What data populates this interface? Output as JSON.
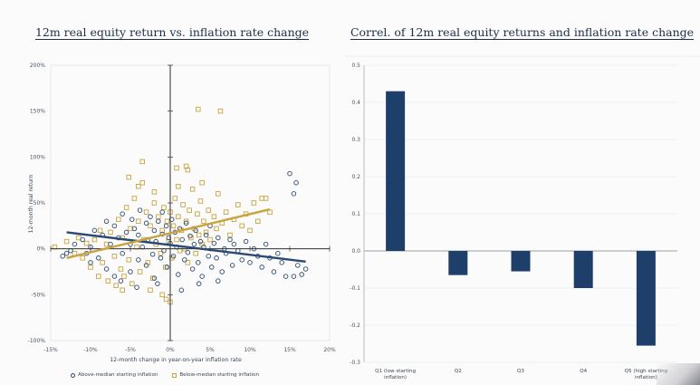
{
  "colors": {
    "above_median": "#2b4a73",
    "below_median": "#c8a33e",
    "bar": "#1f3f6b",
    "axis": "#2e2e2e",
    "grid": "#e1e4ea",
    "title": "#1e2e4a"
  },
  "chart_data": [
    {
      "type": "scatter",
      "title": "12m real equity return vs. inflation rate change",
      "xlabel": "12-month change in year-on-year inflation rate",
      "ylabel": "12-month real return",
      "xlim": [
        -0.15,
        0.2
      ],
      "ylim": [
        -1.0,
        2.0
      ],
      "x_ticks": [
        "-15%",
        "-10%",
        "-5%",
        "0%",
        "5%",
        "10%",
        "15%",
        "20%"
      ],
      "x_tick_values": [
        -0.15,
        -0.1,
        -0.05,
        0,
        0.05,
        0.1,
        0.15,
        0.2
      ],
      "y_ticks": [
        "200%",
        "150%",
        "100%",
        "50%",
        "0%",
        "-50%",
        "-100%"
      ],
      "y_tick_values": [
        2.0,
        1.5,
        1.0,
        0.5,
        0,
        -0.5,
        -1.0
      ],
      "legend_placement": "bottom",
      "grid": false,
      "series": [
        {
          "name": "Above-median starting inflation",
          "marker": "circle",
          "points": [
            [
              -0.13,
              -0.05
            ],
            [
              -0.125,
              -0.02
            ],
            [
              -0.12,
              0.05
            ],
            [
              -0.11,
              0.1
            ],
            [
              -0.1,
              -0.15
            ],
            [
              -0.1,
              0.02
            ],
            [
              -0.095,
              0.2
            ],
            [
              -0.09,
              -0.1
            ],
            [
              -0.085,
              0.15
            ],
            [
              -0.08,
              0.3
            ],
            [
              -0.08,
              -0.22
            ],
            [
              -0.075,
              0.05
            ],
            [
              -0.07,
              0.25
            ],
            [
              -0.07,
              -0.3
            ],
            [
              -0.065,
              0.12
            ],
            [
              -0.06,
              0.38
            ],
            [
              -0.06,
              -0.05
            ],
            [
              -0.055,
              0.18
            ],
            [
              -0.05,
              -0.25
            ],
            [
              -0.05,
              0.05
            ],
            [
              -0.048,
              0.32
            ],
            [
              -0.045,
              0.22
            ],
            [
              -0.04,
              -0.12
            ],
            [
              -0.04,
              0.15
            ],
            [
              -0.038,
              0.42
            ],
            [
              -0.035,
              0.02
            ],
            [
              -0.03,
              0.28
            ],
            [
              -0.03,
              -0.18
            ],
            [
              -0.028,
              0.1
            ],
            [
              -0.025,
              0.35
            ],
            [
              -0.022,
              -0.06
            ],
            [
              -0.02,
              0.2
            ],
            [
              -0.02,
              -0.32
            ],
            [
              -0.018,
              0.08
            ],
            [
              -0.015,
              0.3
            ],
            [
              -0.012,
              -0.1
            ],
            [
              -0.01,
              0.16
            ],
            [
              -0.01,
              0.4
            ],
            [
              -0.008,
              -0.02
            ],
            [
              -0.005,
              0.25
            ],
            [
              -0.004,
              -0.2
            ],
            [
              -0.002,
              0.12
            ],
            [
              0.0,
              0.06
            ],
            [
              0.002,
              0.32
            ],
            [
              0.004,
              -0.08
            ],
            [
              0.006,
              0.18
            ],
            [
              0.008,
              0.02
            ],
            [
              0.01,
              -0.28
            ],
            [
              0.012,
              0.22
            ],
            [
              0.015,
              0.1
            ],
            [
              0.018,
              -0.12
            ],
            [
              0.02,
              0.28
            ],
            [
              0.022,
              -0.04
            ],
            [
              0.025,
              0.14
            ],
            [
              0.028,
              -0.22
            ],
            [
              0.03,
              0.05
            ],
            [
              0.032,
              0.2
            ],
            [
              0.035,
              -0.15
            ],
            [
              0.038,
              0.08
            ],
            [
              0.04,
              -0.3
            ],
            [
              0.042,
              0.02
            ],
            [
              0.045,
              0.15
            ],
            [
              0.048,
              -0.08
            ],
            [
              0.05,
              0.25
            ],
            [
              0.052,
              -0.2
            ],
            [
              0.055,
              0.06
            ],
            [
              0.058,
              -0.1
            ],
            [
              0.06,
              0.12
            ],
            [
              0.065,
              -0.25
            ],
            [
              0.068,
              0.0
            ],
            [
              0.07,
              -0.05
            ],
            [
              0.075,
              0.1
            ],
            [
              0.078,
              -0.18
            ],
            [
              0.08,
              0.05
            ],
            [
              0.085,
              -0.02
            ],
            [
              0.09,
              -0.12
            ],
            [
              0.095,
              0.08
            ],
            [
              0.1,
              -0.15
            ],
            [
              0.105,
              0.0
            ],
            [
              0.11,
              -0.08
            ],
            [
              0.115,
              -0.2
            ],
            [
              0.12,
              0.05
            ],
            [
              0.125,
              -0.1
            ],
            [
              0.13,
              -0.25
            ],
            [
              0.135,
              -0.05
            ],
            [
              0.14,
              -0.15
            ],
            [
              0.145,
              -0.3
            ],
            [
              0.15,
              0.82
            ],
            [
              0.155,
              0.6
            ],
            [
              0.158,
              0.72
            ],
            [
              0.155,
              -0.3
            ],
            [
              0.16,
              -0.18
            ],
            [
              0.165,
              -0.28
            ],
            [
              0.17,
              -0.22
            ],
            [
              -0.135,
              -0.08
            ],
            [
              -0.105,
              -0.05
            ],
            [
              -0.062,
              -0.35
            ],
            [
              -0.042,
              -0.42
            ],
            [
              -0.016,
              -0.38
            ],
            [
              0.014,
              -0.45
            ],
            [
              0.036,
              -0.38
            ],
            [
              0.06,
              -0.35
            ]
          ]
        },
        {
          "name": "Below-median starting inflation",
          "marker": "square",
          "points": [
            [
              0.035,
              1.52
            ],
            [
              0.063,
              1.5
            ],
            [
              -0.145,
              0.02
            ],
            [
              -0.13,
              0.08
            ],
            [
              -0.12,
              -0.05
            ],
            [
              -0.115,
              0.12
            ],
            [
              -0.11,
              -0.1
            ],
            [
              -0.105,
              0.06
            ],
            [
              -0.1,
              -0.2
            ],
            [
              -0.095,
              0.1
            ],
            [
              -0.09,
              -0.3
            ],
            [
              -0.088,
              0.2
            ],
            [
              -0.085,
              -0.15
            ],
            [
              -0.08,
              0.05
            ],
            [
              -0.078,
              -0.35
            ],
            [
              -0.075,
              0.18
            ],
            [
              -0.07,
              -0.08
            ],
            [
              -0.068,
              -0.4
            ],
            [
              -0.065,
              0.32
            ],
            [
              -0.062,
              -0.22
            ],
            [
              -0.06,
              0.12
            ],
            [
              -0.058,
              -0.3
            ],
            [
              -0.055,
              0.45
            ],
            [
              -0.052,
              -0.12
            ],
            [
              -0.05,
              0.22
            ],
            [
              -0.048,
              -0.38
            ],
            [
              -0.045,
              0.55
            ],
            [
              -0.042,
              0.02
            ],
            [
              -0.04,
              0.3
            ],
            [
              -0.038,
              -0.25
            ],
            [
              -0.035,
              0.72
            ],
            [
              -0.033,
              0.1
            ],
            [
              -0.03,
              0.4
            ],
            [
              -0.028,
              -0.15
            ],
            [
              -0.025,
              0.25
            ],
            [
              -0.022,
              -0.32
            ],
            [
              -0.02,
              0.5
            ],
            [
              -0.018,
              0.05
            ],
            [
              -0.015,
              0.35
            ],
            [
              -0.012,
              -0.05
            ],
            [
              -0.01,
              0.2
            ],
            [
              -0.008,
              0.45
            ],
            [
              -0.006,
              -0.2
            ],
            [
              -0.004,
              0.3
            ],
            [
              -0.002,
              0.08
            ],
            [
              0.0,
              0.4
            ],
            [
              0.002,
              -0.1
            ],
            [
              0.004,
              0.25
            ],
            [
              0.006,
              0.55
            ],
            [
              0.008,
              0.1
            ],
            [
              0.01,
              0.35
            ],
            [
              0.012,
              -0.02
            ],
            [
              0.014,
              0.2
            ],
            [
              0.016,
              0.48
            ],
            [
              0.018,
              0.0
            ],
            [
              0.02,
              0.3
            ],
            [
              0.022,
              -0.15
            ],
            [
              0.024,
              0.42
            ],
            [
              0.026,
              0.12
            ],
            [
              0.028,
              0.65
            ],
            [
              0.03,
              0.22
            ],
            [
              0.032,
              -0.05
            ],
            [
              0.034,
              0.38
            ],
            [
              0.036,
              0.15
            ],
            [
              0.038,
              0.52
            ],
            [
              0.04,
              0.05
            ],
            [
              0.042,
              0.3
            ],
            [
              0.045,
              0.18
            ],
            [
              0.048,
              0.42
            ],
            [
              0.05,
              0.1
            ],
            [
              0.055,
              0.35
            ],
            [
              0.058,
              0.22
            ],
            [
              0.06,
              0.6
            ],
            [
              0.065,
              0.28
            ],
            [
              0.07,
              0.4
            ],
            [
              0.075,
              0.15
            ],
            [
              0.08,
              0.32
            ],
            [
              0.085,
              0.48
            ],
            [
              0.09,
              0.25
            ],
            [
              0.095,
              0.38
            ],
            [
              0.1,
              0.2
            ],
            [
              0.105,
              0.5
            ],
            [
              0.11,
              0.3
            ],
            [
              0.115,
              0.55
            ],
            [
              0.12,
              0.55
            ],
            [
              0.125,
              0.4
            ],
            [
              0.02,
              0.9
            ],
            [
              0.022,
              0.86
            ],
            [
              -0.035,
              0.95
            ],
            [
              -0.01,
              -0.5
            ],
            [
              -0.005,
              -0.55
            ],
            [
              0.0,
              -0.58
            ],
            [
              -0.06,
              -0.45
            ],
            [
              -0.02,
              0.62
            ],
            [
              0.01,
              0.68
            ],
            [
              -0.04,
              0.68
            ],
            [
              -0.052,
              0.78
            ],
            [
              0.04,
              0.72
            ],
            [
              0.008,
              0.88
            ],
            [
              -0.025,
              -0.45
            ]
          ]
        }
      ],
      "trendlines": [
        {
          "series": "Above-median starting inflation",
          "x": [
            -0.13,
            0.17
          ],
          "y": [
            0.18,
            -0.14
          ]
        },
        {
          "series": "Below-median starting inflation",
          "x": [
            -0.13,
            0.125
          ],
          "y": [
            -0.1,
            0.43
          ]
        }
      ]
    },
    {
      "type": "bar",
      "title": "Correl. of 12m real equity returns and inflation rate change",
      "categories": [
        "Q1 (low starting inflation)",
        "Q2",
        "Q3",
        "Q4",
        "Q5 (high starting inflation)"
      ],
      "values": [
        0.43,
        -0.065,
        -0.055,
        -0.1,
        -0.255
      ],
      "ylim": [
        -0.3,
        0.5
      ],
      "y_ticks": [
        "0.5",
        "0.4",
        "0.3",
        "0.2",
        "0.1",
        "0.0",
        "-0.1",
        "-0.2",
        "-0.3"
      ],
      "y_tick_values": [
        0.5,
        0.4,
        0.3,
        0.2,
        0.1,
        0.0,
        -0.1,
        -0.2,
        -0.3
      ],
      "grid": true,
      "xlabel": "",
      "ylabel": ""
    }
  ]
}
